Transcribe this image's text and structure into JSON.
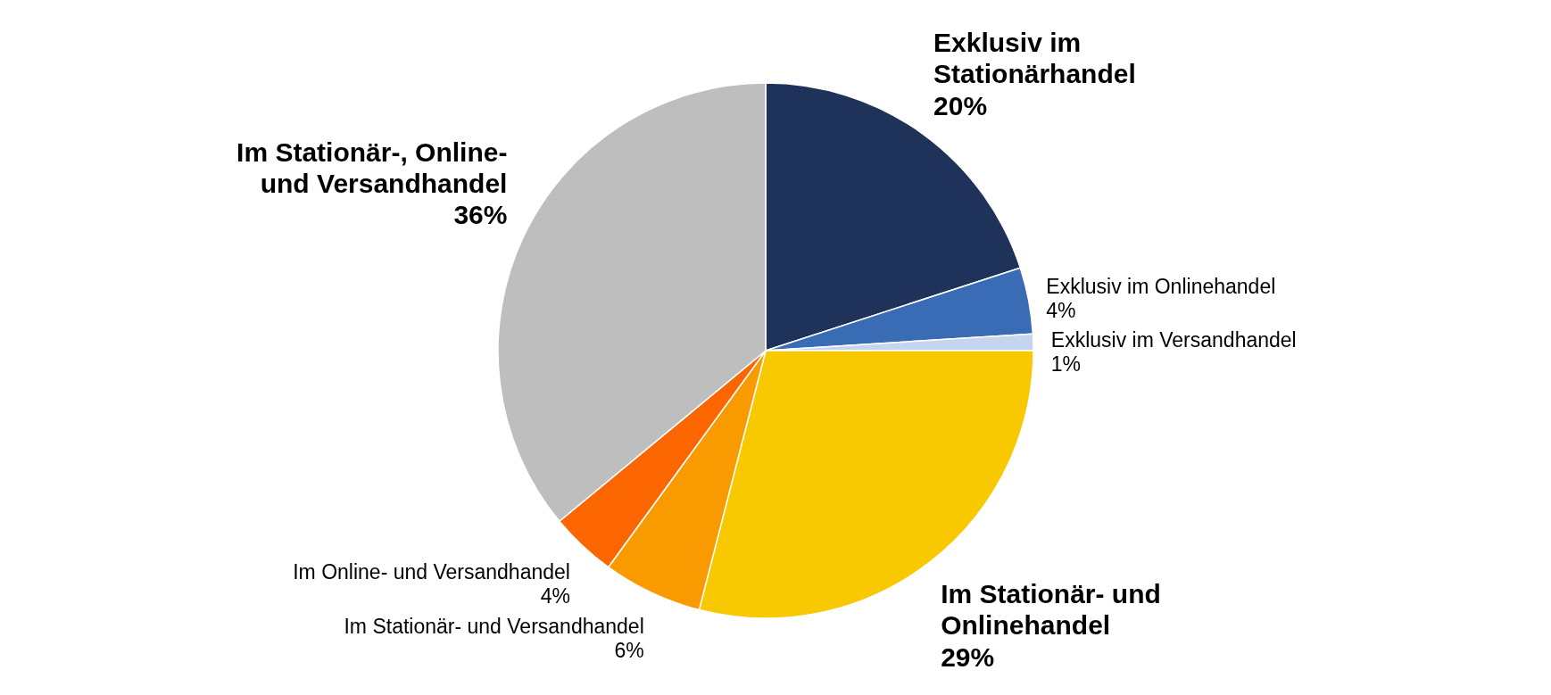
{
  "chart_data": {
    "type": "pie",
    "categories": [
      "Exklusiv im Stationärhandel",
      "Exklusiv im Onlinehandel",
      "Exklusiv im Versandhandel",
      "Im Stationär- und Onlinehandel",
      "Im Stationär- und Versandhandel",
      "Im Online- und Versandhandel",
      "Im Stationär-, Online- und Versandhandel"
    ],
    "values": [
      20,
      4,
      1,
      29,
      6,
      4,
      36
    ],
    "colors": [
      "#1f3259",
      "#3a6cb5",
      "#c5d5ee",
      "#f8c800",
      "#f89a00",
      "#fc6600",
      "#bebebe"
    ],
    "value_labels": [
      "20%",
      "4%",
      "1%",
      "29%",
      "6%",
      "4%",
      "36%"
    ]
  }
}
